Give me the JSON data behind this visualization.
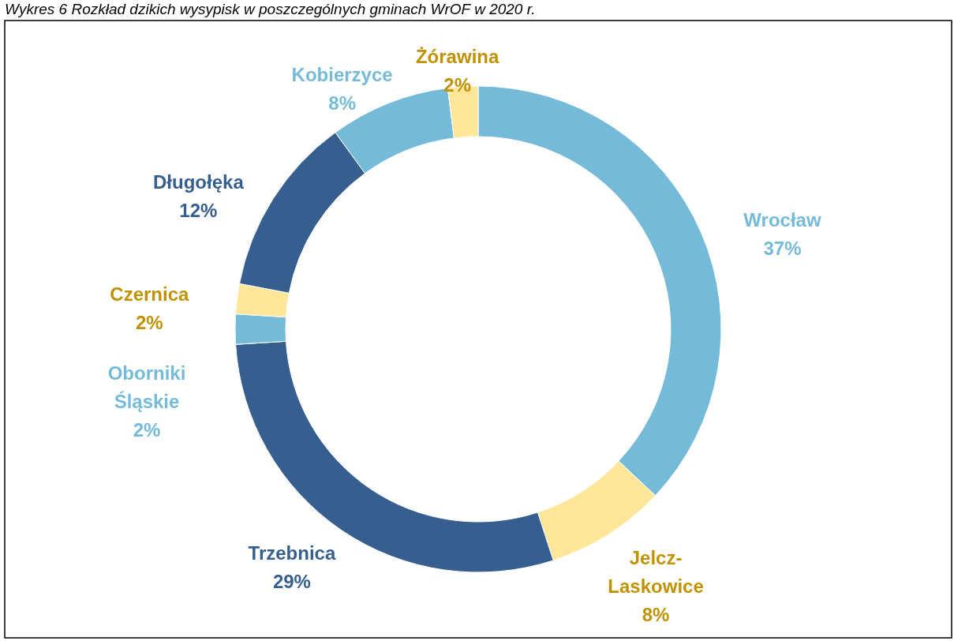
{
  "chart_data": {
    "type": "donut",
    "title": "Wykres 6 Rozkład dzikich wysypisk w poszczególnych gminach WrOF w 2020 r.",
    "categories": [
      "Wrocław",
      "Jelcz-Laskowice",
      "Trzebnica",
      "Oborniki Śląskie",
      "Czernica",
      "Długołęka",
      "Kobierzyce",
      "Żórawina"
    ],
    "values": [
      37,
      8,
      29,
      2,
      2,
      12,
      8,
      2
    ],
    "value_labels": [
      "37%",
      "8%",
      "29%",
      "2%",
      "2%",
      "12%",
      "8%",
      "2%"
    ],
    "colors": [
      "#75bbd9",
      "#ffe699",
      "#365f8f",
      "#75bbd9",
      "#ffe699",
      "#365f8f",
      "#75bbd9",
      "#ffe699"
    ]
  }
}
